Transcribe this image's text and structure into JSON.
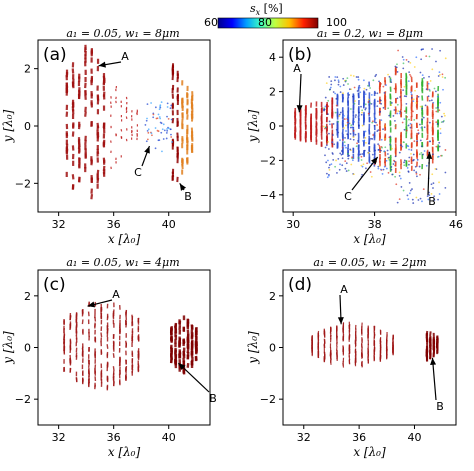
{
  "colorbar": {
    "label": "s_x [%]",
    "label_main": "s",
    "label_sub": "x",
    "label_rest": " [%]",
    "ticks": [
      "60",
      "80",
      "100"
    ],
    "range": [
      60,
      100
    ],
    "colormap": "jet",
    "colors": [
      "#00008f",
      "#0000ff",
      "#00a0ff",
      "#40ffbf",
      "#c0ff40",
      "#ffc000",
      "#ff2000",
      "#800000"
    ]
  },
  "chart_data": [
    {
      "type": "scatter",
      "panel_label": "(a)",
      "title": "a₁ = 0.05, w₁ = 8μm",
      "xlabel": "x [λ₀]",
      "ylabel": "y [λ₀]",
      "xticks": [
        "32",
        "36",
        "40"
      ],
      "yticks": [
        "2",
        "0",
        "−2"
      ],
      "xlim": [
        30.5,
        43
      ],
      "ylim": [
        -3,
        3
      ],
      "annotations": [
        {
          "text": "A",
          "target": [
            34.9,
            2.1
          ]
        },
        {
          "text": "B",
          "target": [
            40.8,
            -2.0
          ]
        },
        {
          "text": "C",
          "target": [
            38.6,
            -0.7
          ]
        }
      ]
    },
    {
      "type": "scatter",
      "panel_label": "(b)",
      "title": "a₁ = 0.2, w₁ = 8μm",
      "xlabel": "x [λ₀]",
      "ylabel": "y [λ₀]",
      "xticks": [
        "30",
        "38",
        "46"
      ],
      "yticks": [
        "4",
        "2",
        "0",
        "−2",
        "−4"
      ],
      "xlim": [
        29,
        46
      ],
      "ylim": [
        -5,
        5
      ],
      "annotations": [
        {
          "text": "A",
          "target": [
            30.6,
            0.8
          ]
        },
        {
          "text": "B",
          "target": [
            43.4,
            -1.5
          ]
        },
        {
          "text": "C",
          "target": [
            38.3,
            -1.8
          ]
        }
      ]
    },
    {
      "type": "scatter",
      "panel_label": "(c)",
      "title": "a₁ = 0.05, w₁ = 4μm",
      "xlabel": "x [λ₀]",
      "ylabel": "y [λ₀]",
      "xticks": [
        "32",
        "36",
        "40"
      ],
      "yticks": [
        "2",
        "0",
        "−2"
      ],
      "xlim": [
        30.5,
        43
      ],
      "ylim": [
        -3,
        3
      ],
      "annotations": [
        {
          "text": "A",
          "target": [
            34.1,
            1.6
          ]
        },
        {
          "text": "B",
          "target": [
            40.7,
            -0.6
          ]
        }
      ]
    },
    {
      "type": "scatter",
      "panel_label": "(d)",
      "title": "a₁ = 0.05, w₁ = 2μm",
      "xlabel": "x [λ₀]",
      "ylabel": "y [λ₀]",
      "xticks": [
        "32",
        "36",
        "40"
      ],
      "yticks": [
        "2",
        "0",
        "−2"
      ],
      "xlim": [
        30.5,
        43
      ],
      "ylim": [
        -3,
        3
      ],
      "annotations": [
        {
          "text": "A",
          "target": [
            34.7,
            0.9
          ]
        },
        {
          "text": "B",
          "target": [
            41.3,
            -0.4
          ]
        }
      ]
    }
  ]
}
